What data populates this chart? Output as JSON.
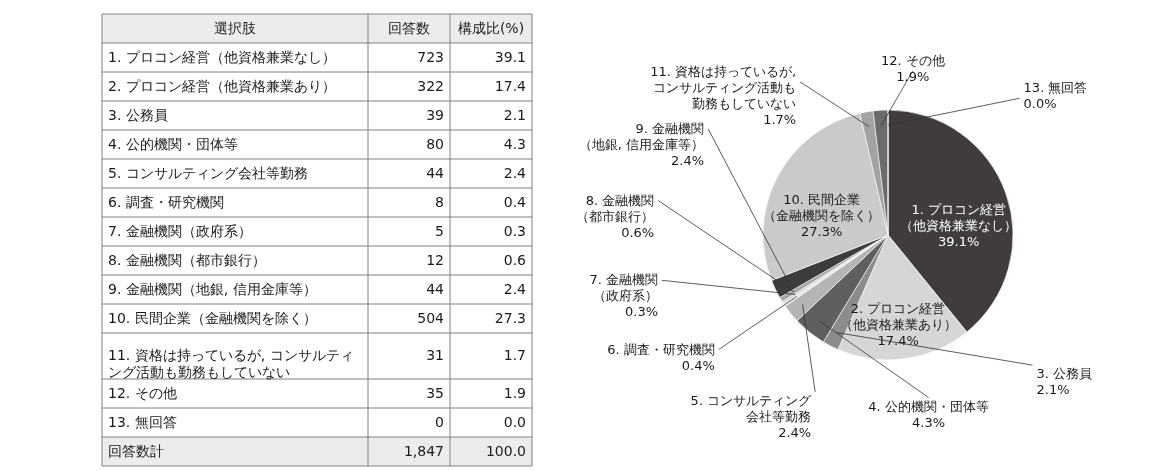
{
  "chart_data": [
    {
      "type": "other",
      "categories": [
        "1. プロコン経営（他資格兼業なし）",
        "2. プロコン経営（他資格兼業あり）",
        "3. 公務員",
        "4. 公的機関・団体等",
        "5. コンサルティング会社等勤務",
        "6. 調査・研究機関",
        "7. 金融機関（政府系）",
        "8. 金融機関（都市銀行）",
        "9. 金融機関（地銀, 信用金庫等）",
        "10. 民間企業（金融機関を除く）",
        "11. 資格は持っているが, コンサルティング活動も勤務もしていない",
        "12. その他",
        "13. 無回答"
      ],
      "series": [
        {
          "name": "回答数",
          "values": [
            723,
            322,
            39,
            80,
            44,
            8,
            5,
            12,
            44,
            504,
            31,
            35,
            0
          ]
        },
        {
          "name": "構成比(%)",
          "values": [
            39.1,
            17.4,
            2.1,
            4.3,
            2.4,
            0.4,
            0.3,
            0.6,
            2.4,
            27.3,
            1.7,
            1.9,
            0.0
          ],
          "value_labels": [
            "39.1",
            "17.4",
            "2.1",
            "4.3",
            "2.4",
            "0.4",
            "0.3",
            "0.6",
            "2.4",
            "27.3",
            "1.7",
            "1.9",
            "0.0"
          ]
        }
      ],
      "totals": [
        "1,847",
        "100.0"
      ],
      "annotations": [
        "選択肢",
        "回答数計"
      ],
      "data_labels": true
    },
    {
      "type": "pie",
      "categories": [
        "1. プロコン経営（他資格兼業なし）",
        "2. プロコン経営（他資格兼業あり）",
        "3. 公務員",
        "4. 公的機関・団体等",
        "5. コンサルティング会社等勤務",
        "6. 調査・研究機関",
        "7. 金融機関（政府系）",
        "8. 金融機関（都市銀行）",
        "9. 金融機関（地銀, 信用金庫等）",
        "10. 民間企業（金融機関を除く）",
        "11. 資格は持っているが, コンサルティング活動も勤務もしていない",
        "12. その他",
        "13. 無回答"
      ],
      "values": [
        39.1,
        17.4,
        2.1,
        4.3,
        2.4,
        0.4,
        0.3,
        0.6,
        2.4,
        27.3,
        1.7,
        1.9,
        0.0
      ],
      "colors": [
        "#403c3c",
        "#d6d6d6",
        "#8c8c8c",
        "#5f5f5f",
        "#b4b4b4",
        "#e6e6e6",
        "#cfcfcf",
        "#a5a5a5",
        "#3c3c3c",
        "#cacaca",
        "#a3a3a3",
        "#6b6b6b",
        "#ffffff"
      ],
      "value_labels": [
        "39.1%",
        "17.4%",
        "2.1%",
        "4.3%",
        "2.4%",
        "0.4%",
        "0.3%",
        "0.6%",
        "2.4%",
        "27.3%",
        "1.7%",
        "1.9%",
        "0.0%"
      ]
    }
  ]
}
